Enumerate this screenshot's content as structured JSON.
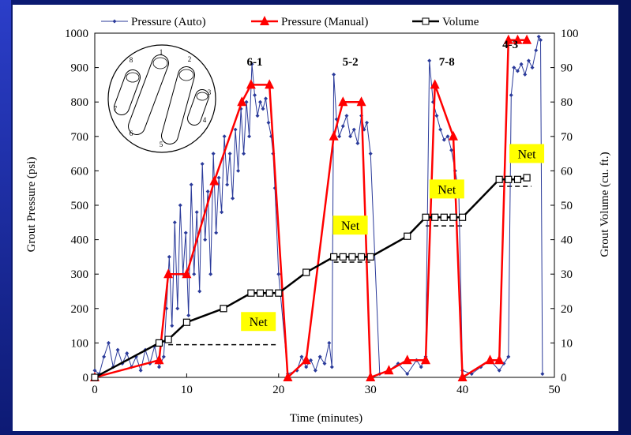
{
  "chart_data": {
    "type": "line",
    "xlabel": "Time (minutes)",
    "ylabel": "Grout Pressure (psi)",
    "y2label": "Grout Volume (cu. ft.)",
    "xlim": [
      0,
      50
    ],
    "ylim": [
      0,
      1000
    ],
    "y2lim": [
      0,
      100
    ],
    "xticks": [
      0,
      10,
      20,
      30,
      40,
      50
    ],
    "yticks": [
      0,
      100,
      200,
      300,
      400,
      500,
      600,
      700,
      800,
      900,
      1000
    ],
    "y2ticks": [
      0,
      10,
      20,
      30,
      40,
      50,
      60,
      70,
      80,
      90,
      100
    ],
    "legend_position": "top",
    "grid": false,
    "series": [
      {
        "name": "Pressure (Auto)",
        "axis": "left",
        "color": "#2a3a9a",
        "marker": "small-diamond",
        "x": [
          0,
          0.5,
          1,
          1.5,
          2,
          2.5,
          3,
          3.5,
          4,
          4.5,
          5,
          5.5,
          6,
          6.5,
          7,
          7.5,
          7.8,
          8.1,
          8.4,
          8.7,
          9,
          9.3,
          9.6,
          9.9,
          10.2,
          10.5,
          10.8,
          11.1,
          11.4,
          11.7,
          12,
          12.3,
          12.6,
          12.9,
          13.2,
          13.5,
          13.8,
          14.1,
          14.4,
          14.7,
          15,
          15.3,
          15.6,
          15.9,
          16.2,
          16.5,
          16.8,
          17.1,
          17.4,
          17.7,
          18,
          18.3,
          18.6,
          18.9,
          19.2,
          19.4,
          19.6,
          20,
          21,
          22,
          22.5,
          23,
          23.5,
          24,
          24.5,
          25,
          25.5,
          25.8,
          26,
          26.3,
          26.6,
          27,
          27.4,
          27.8,
          28.2,
          28.6,
          29,
          29.3,
          29.6,
          30,
          31,
          32,
          33,
          34,
          35,
          35.5,
          36,
          36.4,
          36.8,
          37.2,
          37.6,
          38,
          38.4,
          38.8,
          39.2,
          39.6,
          40,
          41,
          42,
          43,
          44,
          44.5,
          45,
          45.3,
          45.6,
          46,
          46.4,
          46.8,
          47.2,
          47.6,
          48,
          48.3,
          48.5,
          48.7
        ],
        "values": [
          20,
          10,
          60,
          100,
          30,
          80,
          40,
          70,
          30,
          60,
          20,
          80,
          40,
          90,
          30,
          60,
          200,
          350,
          150,
          450,
          200,
          500,
          300,
          420,
          180,
          560,
          300,
          480,
          250,
          620,
          400,
          540,
          300,
          650,
          420,
          580,
          480,
          700,
          560,
          650,
          520,
          720,
          600,
          780,
          650,
          800,
          700,
          910,
          820,
          760,
          800,
          780,
          810,
          740,
          700,
          650,
          550,
          300,
          10,
          20,
          60,
          30,
          50,
          20,
          60,
          40,
          100,
          30,
          880,
          750,
          700,
          730,
          760,
          700,
          720,
          680,
          760,
          720,
          740,
          650,
          10,
          20,
          40,
          10,
          50,
          30,
          60,
          920,
          800,
          760,
          720,
          690,
          700,
          660,
          600,
          540,
          20,
          10,
          30,
          50,
          20,
          40,
          60,
          820,
          900,
          890,
          910,
          880,
          920,
          900,
          950,
          990,
          980,
          10
        ]
      },
      {
        "name": "Pressure (Manual)",
        "axis": "left",
        "color": "#ff0000",
        "marker": "triangle",
        "x": [
          0,
          7,
          8,
          10,
          13,
          16,
          17,
          19,
          21,
          23,
          26,
          27,
          29,
          30,
          32,
          34,
          36,
          37,
          39,
          40,
          43,
          44,
          45,
          46,
          47
        ],
        "values": [
          0,
          50,
          300,
          300,
          570,
          800,
          850,
          850,
          0,
          50,
          700,
          800,
          800,
          0,
          20,
          50,
          50,
          850,
          700,
          0,
          50,
          50,
          980,
          980,
          980
        ]
      },
      {
        "name": "Volume",
        "axis": "right",
        "color": "#000000",
        "marker": "open-square",
        "x": [
          0,
          7,
          8,
          10,
          14,
          17,
          18,
          19,
          20,
          23,
          26,
          27,
          28,
          29,
          30,
          34,
          36,
          37,
          38,
          39,
          40,
          44,
          45,
          46,
          47
        ],
        "values": [
          0,
          10,
          11,
          16,
          20,
          24.5,
          24.5,
          24.5,
          24.5,
          30.5,
          35,
          35,
          35,
          35,
          35,
          41,
          46.5,
          46.5,
          46.5,
          46.5,
          46.5,
          57.5,
          57.5,
          57.5,
          58
        ]
      }
    ],
    "annotations": [
      {
        "text": "6-1",
        "x": 17.4,
        "y": 920
      },
      {
        "text": "5-2",
        "x": 27.8,
        "y": 920
      },
      {
        "text": "7-8",
        "x": 38.3,
        "y": 920
      },
      {
        "text": "4-3",
        "x": 45.2,
        "y": 970
      },
      {
        "text": "Net",
        "x": 17.8,
        "y": 160
      },
      {
        "text": "Net",
        "x": 27.8,
        "y": 440
      },
      {
        "text": "Net",
        "x": 38.3,
        "y": 545
      },
      {
        "text": "Net",
        "x": 47.0,
        "y": 648
      }
    ],
    "net_dashes": [
      {
        "x": [
          8,
          20
        ],
        "y": 95
      },
      {
        "x": [
          26,
          30
        ],
        "y": 335
      },
      {
        "x": [
          36,
          40
        ],
        "y": 440
      },
      {
        "x": [
          44,
          47.5
        ],
        "y": 555
      }
    ],
    "inset_labels": [
      "1",
      "2",
      "3",
      "4",
      "5",
      "6",
      "7",
      "8"
    ]
  }
}
